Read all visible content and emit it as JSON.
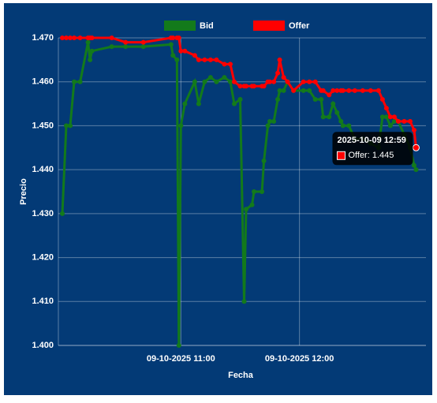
{
  "chart_data": {
    "type": "line",
    "y_label": "Precio",
    "x_label": "Fecha",
    "x": [
      "2025-10-09 10:00",
      "2025-10-09 10:02",
      "2025-10-09 10:04",
      "2025-10-09 10:06",
      "2025-10-09 10:09",
      "2025-10-09 10:13",
      "2025-10-09 10:14",
      "2025-10-09 10:15",
      "2025-10-09 10:25",
      "2025-10-09 10:32",
      "2025-10-09 10:41",
      "2025-10-09 10:55",
      "2025-10-09 10:56",
      "2025-10-09 10:58",
      "2025-10-09 10:59",
      "2025-10-09 11:00",
      "2025-10-09 11:02",
      "2025-10-09 11:07",
      "2025-10-09 11:09",
      "2025-10-09 11:12",
      "2025-10-09 11:15",
      "2025-10-09 11:18",
      "2025-10-09 11:22",
      "2025-10-09 11:25",
      "2025-10-09 11:27",
      "2025-10-09 11:30",
      "2025-10-09 11:32",
      "2025-10-09 11:33",
      "2025-10-09 11:36",
      "2025-10-09 11:37",
      "2025-10-09 11:41",
      "2025-10-09 11:42",
      "2025-10-09 11:44",
      "2025-10-09 11:45",
      "2025-10-09 11:47",
      "2025-10-09 11:49",
      "2025-10-09 11:50",
      "2025-10-09 11:52",
      "2025-10-09 11:54",
      "2025-10-09 11:57",
      "2025-10-09 12:02",
      "2025-10-09 12:05",
      "2025-10-09 12:08",
      "2025-10-09 12:11",
      "2025-10-09 12:12",
      "2025-10-09 12:15",
      "2025-10-09 12:17",
      "2025-10-09 12:19",
      "2025-10-09 12:21",
      "2025-10-09 12:22",
      "2025-10-09 12:25",
      "2025-10-09 12:28",
      "2025-10-09 12:32",
      "2025-10-09 12:36",
      "2025-10-09 12:40",
      "2025-10-09 12:42",
      "2025-10-09 12:44",
      "2025-10-09 12:46",
      "2025-10-09 12:48",
      "2025-10-09 12:50",
      "2025-10-09 12:53",
      "2025-10-09 12:56",
      "2025-10-09 12:58",
      "2025-10-09 12:59"
    ],
    "series": [
      {
        "name": "Bid",
        "color": "#137a1b",
        "values": [
          1.43,
          1.45,
          1.45,
          1.46,
          1.46,
          1.469,
          1.465,
          1.467,
          1.468,
          1.468,
          1.468,
          1.4685,
          1.466,
          1.465,
          1.4,
          1.45,
          1.455,
          1.46,
          1.455,
          1.46,
          1.461,
          1.46,
          1.461,
          1.46,
          1.455,
          1.456,
          1.41,
          1.431,
          1.432,
          1.435,
          1.435,
          1.442,
          1.45,
          1.451,
          1.451,
          1.456,
          1.458,
          1.458,
          1.46,
          1.458,
          1.458,
          1.458,
          1.456,
          1.456,
          1.452,
          1.452,
          1.455,
          1.453,
          1.451,
          1.45,
          1.45,
          1.447,
          1.447,
          1.446,
          1.445,
          1.452,
          1.452,
          1.45,
          1.451,
          1.451,
          1.448,
          1.445,
          1.441,
          1.44
        ]
      },
      {
        "name": "Offer",
        "color": "#ff0000",
        "values": [
          1.47,
          1.47,
          1.47,
          1.47,
          1.47,
          1.47,
          1.47,
          1.47,
          1.47,
          1.469,
          1.469,
          1.47,
          1.47,
          1.47,
          1.47,
          1.467,
          1.467,
          1.466,
          1.465,
          1.465,
          1.465,
          1.465,
          1.464,
          1.464,
          1.46,
          1.459,
          1.459,
          1.459,
          1.459,
          1.459,
          1.459,
          1.459,
          1.46,
          1.46,
          1.46,
          1.462,
          1.465,
          1.461,
          1.46,
          1.458,
          1.46,
          1.46,
          1.46,
          1.458,
          1.458,
          1.457,
          1.458,
          1.458,
          1.458,
          1.458,
          1.458,
          1.458,
          1.458,
          1.458,
          1.458,
          1.456,
          1.454,
          1.452,
          1.452,
          1.451,
          1.451,
          1.451,
          1.449,
          1.445
        ]
      }
    ],
    "xlim": [
      "2025-10-09 09:58",
      "2025-10-09 13:04"
    ],
    "xticks": [
      {
        "value": "2025-10-09 11:00",
        "label": "09-10-2025 11:00"
      },
      {
        "value": "2025-10-09 12:00",
        "label": "09-10-2025 12:00"
      }
    ],
    "ylim": [
      1.4,
      1.47
    ],
    "yticks": [
      {
        "value": 1.4,
        "label": "1.400"
      },
      {
        "value": 1.41,
        "label": "1.410"
      },
      {
        "value": 1.42,
        "label": "1.420"
      },
      {
        "value": 1.43,
        "label": "1.430"
      },
      {
        "value": 1.44,
        "label": "1.440"
      },
      {
        "value": 1.45,
        "label": "1.450"
      },
      {
        "value": 1.46,
        "label": "1.460"
      },
      {
        "value": 1.47,
        "label": "1.470"
      }
    ],
    "grid": true,
    "legend": "top",
    "tooltip": {
      "title": "2025-10-09 12:59",
      "label": "Offer: 1.445",
      "series": 1,
      "index": 63
    }
  }
}
